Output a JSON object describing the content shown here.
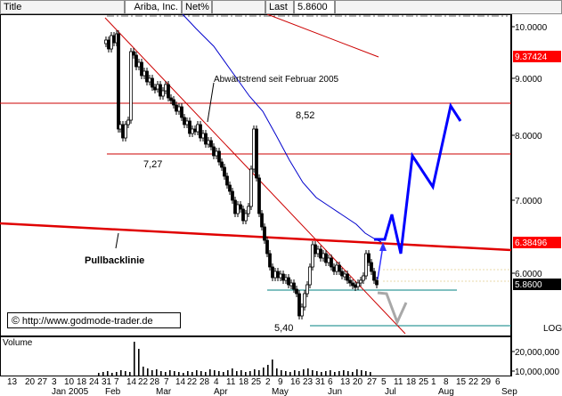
{
  "header": {
    "title_field": "Title",
    "security": "Ariba, Inc.",
    "mode": "Net%",
    "last_label": "Last",
    "last_value": "5.8600"
  },
  "price_axis": {
    "ticks": [
      "10.0000",
      "9.0000",
      "8.0000",
      "7.0000",
      "6.0000"
    ],
    "tags": [
      {
        "label": "9.37424",
        "bg": "#ff0000",
        "fg": "#ffffff"
      },
      {
        "label": "6.38496",
        "bg": "#ff0000",
        "fg": "#ffffff"
      },
      {
        "label": "5.8600",
        "bg": "#000000",
        "fg": "#ffffff"
      }
    ],
    "scale_label": "LOG"
  },
  "annotations": {
    "trend_label": "Abwärtstrend seit Februar 2005",
    "level_852": "8,52",
    "level_727": "7,27",
    "level_540": "5,40",
    "pullback_label": "Pullbacklinie",
    "watermark": "http://www.godmode-trader.de",
    "watermark_symbol": "©"
  },
  "volume": {
    "label": "Volume",
    "ticks": [
      "20,000,000",
      "10,000,000"
    ]
  },
  "date_axis": {
    "days": [
      "13",
      "20",
      "27",
      "3",
      "10",
      "18",
      "24",
      "31",
      "7",
      "14",
      "22",
      "28",
      "7",
      "14",
      "22",
      "28",
      "4",
      "11",
      "18",
      "25",
      "2",
      "9",
      "16",
      "23",
      "31",
      "6",
      "13",
      "20",
      "27",
      "5",
      "11",
      "18",
      "25",
      "1",
      "8",
      "15",
      "22",
      "29",
      "6"
    ],
    "months": [
      "Jan 2005",
      "Feb",
      "Mar",
      "Apr",
      "May",
      "Jun",
      "Jul",
      "Aug",
      "Sep"
    ]
  },
  "colors": {
    "red": "#ff0000",
    "blue": "#0000ff",
    "navy": "#0000ff",
    "teal": "#008080",
    "candle_up": "#ffffff",
    "candle_down": "#000000"
  }
}
